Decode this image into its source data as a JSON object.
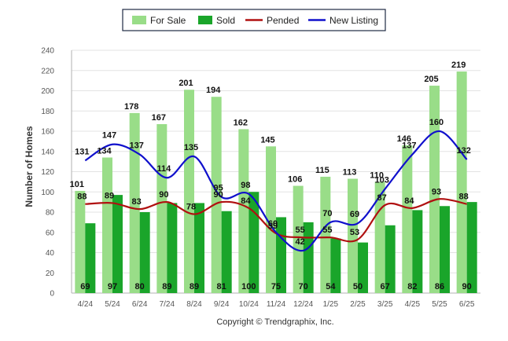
{
  "chart_data": {
    "type": "bar",
    "categories": [
      "4/24",
      "5/24",
      "6/24",
      "7/24",
      "8/24",
      "9/24",
      "10/24",
      "11/24",
      "12/24",
      "1/25",
      "2/25",
      "3/25",
      "4/25",
      "5/25",
      "6/25"
    ],
    "series": [
      {
        "name": "For Sale",
        "kind": "bar",
        "color": "#99dd88",
        "values": [
          101,
          134,
          178,
          167,
          201,
          194,
          162,
          145,
          106,
          115,
          113,
          110,
          146,
          205,
          219
        ]
      },
      {
        "name": "Sold",
        "kind": "bar",
        "color": "#1aa52a",
        "values": [
          69,
          97,
          80,
          89,
          89,
          81,
          100,
          75,
          70,
          54,
          50,
          67,
          82,
          86,
          90
        ]
      },
      {
        "name": "Pended",
        "kind": "line",
        "color": "#b01010",
        "values": [
          88,
          89,
          83,
          90,
          78,
          90,
          84,
          59,
          55,
          55,
          53,
          87,
          84,
          93,
          88
        ]
      },
      {
        "name": "New Listing",
        "kind": "line",
        "color": "#1010cc",
        "values": [
          131,
          147,
          137,
          114,
          135,
          95,
          98,
          60,
          42,
          70,
          69,
          103,
          137,
          160,
          132
        ]
      }
    ],
    "ylabel": "Number of Homes",
    "xlabel": "",
    "ylim": [
      0,
      240
    ],
    "yticks": [
      0,
      20,
      40,
      60,
      80,
      100,
      120,
      140,
      160,
      180,
      200,
      220,
      240
    ],
    "grid": true,
    "legend_position": "top-center",
    "copyright": "Copyright © Trendgraphix, Inc."
  }
}
